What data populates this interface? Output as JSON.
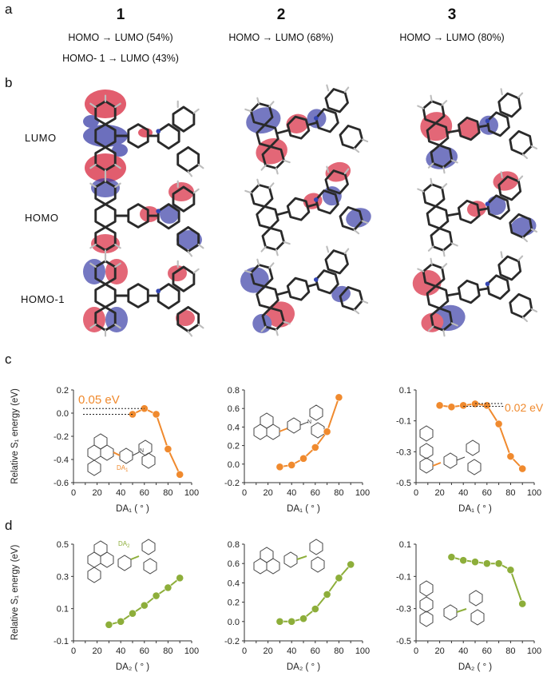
{
  "panels": {
    "a": "a",
    "b": "b",
    "c": "c",
    "d": "d"
  },
  "compounds": [
    "1",
    "2",
    "3"
  ],
  "transitions": {
    "c1_line1": "HOMO → LUMO (54%)",
    "c1_line2": "HOMO- 1 → LUMO (43%)",
    "c2_line1": "HOMO → LUMO (68%)",
    "c3_line1": "HOMO → LUMO (80%)"
  },
  "orbital_labels": [
    "LUMO",
    "HOMO",
    "HOMO-1"
  ],
  "molecule_labels": {
    "da1": "DA",
    "da1_sub": "1",
    "da2": "DA",
    "da2_sub": "2"
  },
  "colors": {
    "orange": "#F08A2E",
    "green": "#8DAE3A",
    "lobe_red": "#D8283E",
    "lobe_blue": "#3B3FA8",
    "axis": "#333333"
  },
  "chart_data": [
    {
      "id": "c1",
      "type": "line",
      "x": [
        50,
        60,
        70,
        80,
        90
      ],
      "y": [
        -0.01,
        0.04,
        -0.01,
        -0.31,
        -0.53
      ],
      "xlim": [
        0,
        100
      ],
      "ylim": [
        -0.6,
        0.2
      ],
      "xticks": [
        0,
        10,
        20,
        30,
        40,
        50,
        60,
        70,
        80,
        90,
        100
      ],
      "yticks": [
        -0.6,
        -0.4,
        -0.2,
        0.0,
        0.2
      ],
      "ytick_labels": [
        "-0.6",
        "-0.4",
        "-0.2",
        "0.0",
        "0.2"
      ],
      "ylabel": "Relative S₁ energy (eV)",
      "xlabel": "DA₁ ( ° )",
      "annotation": "0.05 eV",
      "color": "#F08A2E"
    },
    {
      "id": "c2",
      "type": "line",
      "x": [
        30,
        40,
        50,
        60,
        70,
        80
      ],
      "y": [
        -0.03,
        -0.01,
        0.06,
        0.18,
        0.35,
        0.72
      ],
      "xlim": [
        0,
        100
      ],
      "ylim": [
        -0.2,
        0.8
      ],
      "xticks": [
        0,
        10,
        20,
        30,
        40,
        50,
        60,
        70,
        80,
        90,
        100
      ],
      "yticks": [
        -0.2,
        0.0,
        0.2,
        0.4,
        0.6,
        0.8
      ],
      "ytick_labels": [
        "-0.2",
        "0.0",
        "0.2",
        "0.4",
        "0.6",
        "0.8"
      ],
      "xlabel": "DA₁ ( ° )",
      "color": "#F08A2E"
    },
    {
      "id": "c3",
      "type": "line",
      "x": [
        20,
        30,
        40,
        50,
        60,
        70,
        80,
        90
      ],
      "y": [
        0.0,
        -0.01,
        0.0,
        0.01,
        0.0,
        -0.12,
        -0.33,
        -0.41
      ],
      "xlim": [
        0,
        100
      ],
      "ylim": [
        -0.5,
        0.1
      ],
      "xticks": [
        0,
        10,
        20,
        30,
        40,
        50,
        60,
        70,
        80,
        90,
        100
      ],
      "yticks": [
        -0.5,
        -0.3,
        -0.1,
        0.1
      ],
      "ytick_labels": [
        "-0.5",
        "-0.3",
        "-0.1",
        "0.1"
      ],
      "xlabel": "DA₁ ( ° )",
      "annotation": "0.02 eV",
      "color": "#F08A2E"
    },
    {
      "id": "d1",
      "type": "line",
      "x": [
        30,
        40,
        50,
        60,
        70,
        80,
        90
      ],
      "y": [
        0.0,
        0.02,
        0.07,
        0.12,
        0.18,
        0.23,
        0.29
      ],
      "xlim": [
        0,
        100
      ],
      "ylim": [
        -0.1,
        0.5
      ],
      "xticks": [
        0,
        10,
        20,
        30,
        40,
        50,
        60,
        70,
        80,
        90,
        100
      ],
      "yticks": [
        -0.1,
        0.1,
        0.3,
        0.5
      ],
      "ytick_labels": [
        "-0.1",
        "0.1",
        "0.3",
        "0.5"
      ],
      "ylabel": "Relative S₁ energy (eV)",
      "xlabel": "DA₂ ( ° )",
      "color": "#8DAE3A"
    },
    {
      "id": "d2",
      "type": "line",
      "x": [
        30,
        40,
        50,
        60,
        70,
        80,
        90
      ],
      "y": [
        0.0,
        0.0,
        0.03,
        0.13,
        0.28,
        0.45,
        0.59
      ],
      "xlim": [
        0,
        100
      ],
      "ylim": [
        -0.2,
        0.8
      ],
      "xticks": [
        0,
        10,
        20,
        30,
        40,
        50,
        60,
        70,
        80,
        90,
        100
      ],
      "yticks": [
        -0.2,
        0.0,
        0.2,
        0.4,
        0.6,
        0.8
      ],
      "ytick_labels": [
        "-0.2",
        "0.0",
        "0.2",
        "0.4",
        "0.6",
        "0.8"
      ],
      "xlabel": "DA₂ ( ° )",
      "color": "#8DAE3A"
    },
    {
      "id": "d3",
      "type": "line",
      "x": [
        30,
        40,
        50,
        60,
        70,
        80,
        90
      ],
      "y": [
        0.02,
        0.0,
        -0.01,
        -0.02,
        -0.02,
        -0.06,
        -0.27
      ],
      "xlim": [
        0,
        100
      ],
      "ylim": [
        -0.5,
        0.1
      ],
      "xticks": [
        0,
        10,
        20,
        30,
        40,
        50,
        60,
        70,
        80,
        90,
        100
      ],
      "yticks": [
        -0.5,
        -0.3,
        -0.1,
        0.1
      ],
      "ytick_labels": [
        "-0.5",
        "-0.3",
        "-0.1",
        "0.1"
      ],
      "xlabel": "DA₂ ( ° )",
      "color": "#8DAE3A"
    }
  ]
}
